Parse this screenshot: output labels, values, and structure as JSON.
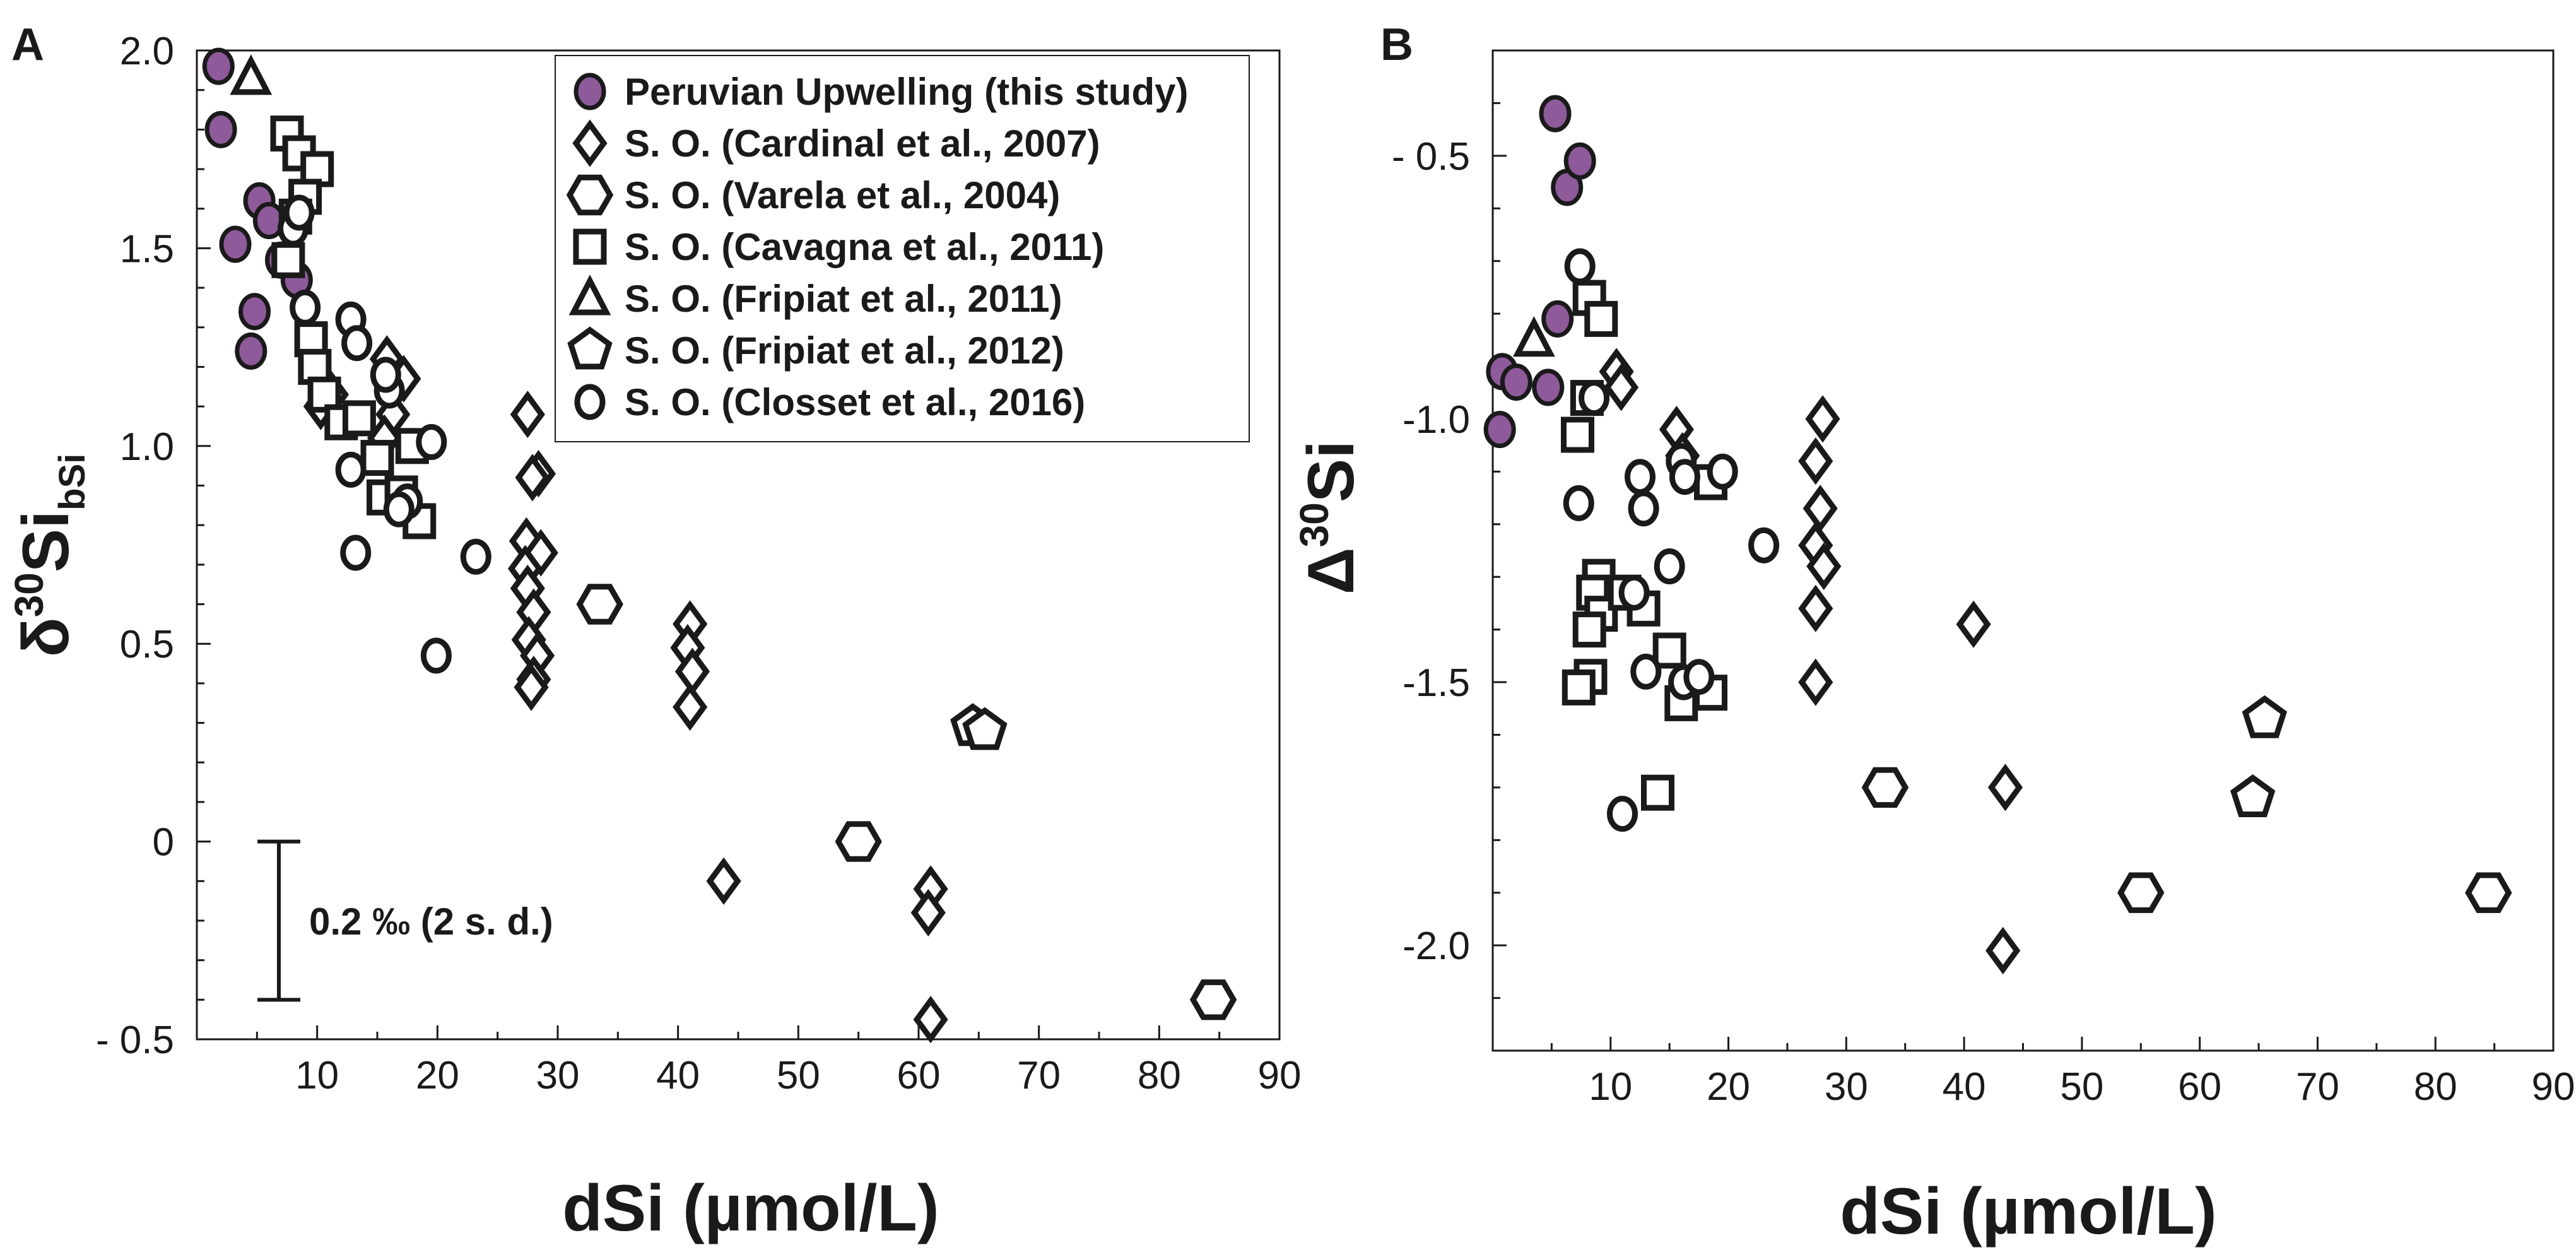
{
  "legend": {
    "entries": [
      {
        "key": "peru",
        "label": "Peruvian Upwelling (this study)"
      },
      {
        "key": "cardinal",
        "label": "S. O. (Cardinal et al., 2007)"
      },
      {
        "key": "varela",
        "label": "S. O. (Varela et al., 2004)"
      },
      {
        "key": "cavagna",
        "label": "S. O. (Cavagna et al., 2011)"
      },
      {
        "key": "fripiat2011",
        "label": "S. O. (Fripiat et al., 2011)"
      },
      {
        "key": "fripiat2012",
        "label": "S. O. (Fripiat et al., 2012)"
      },
      {
        "key": "closset",
        "label": "S. O. (Closset et al., 2016)"
      }
    ]
  },
  "colors": {
    "peru_fill": "#8e5a9a",
    "open_fill": "#ffffff",
    "stroke": "#1a1a1a"
  },
  "chart_data": [
    {
      "panel": "A",
      "type": "scatter",
      "xlabel": "dSi (µmol/L)",
      "ylabel_main": "δ",
      "ylabel_sup": "30",
      "ylabel_base": "Si",
      "ylabel_sub": "bSi",
      "xlim": [
        0,
        90
      ],
      "ylim": [
        -0.5,
        2.0
      ],
      "xticks": [
        10,
        20,
        30,
        40,
        50,
        60,
        70,
        80,
        90
      ],
      "yticks": [
        2.0,
        1.5,
        1.0,
        0.5,
        0,
        -0.5
      ],
      "ytick_labels": [
        "2.0",
        "1.5",
        "1.0",
        "0.5",
        "0",
        "- 0.5"
      ],
      "error_bar": {
        "label": "0.2 ‰ (2 s. d.)",
        "y_top": 0.0,
        "y_bottom": -0.4,
        "x": 1.5
      },
      "series": [
        {
          "name": "Peruvian Upwelling (this study)",
          "marker": "circle-filled",
          "points": [
            [
              1.8,
              1.96
            ],
            [
              2.0,
              1.8
            ],
            [
              3.2,
              1.51
            ],
            [
              5.2,
              1.62
            ],
            [
              6.0,
              1.57
            ],
            [
              4.8,
              1.34
            ],
            [
              4.5,
              1.24
            ],
            [
              7.0,
              1.47
            ],
            [
              8.3,
              1.42
            ]
          ]
        },
        {
          "name": "S. O. (Cardinal et al., 2007)",
          "marker": "diamond",
          "points": [
            [
              10.3,
              1.1
            ],
            [
              11.2,
              1.13
            ],
            [
              15.8,
              1.22
            ],
            [
              16.3,
              1.08
            ],
            [
              17.2,
              1.17
            ],
            [
              15.6,
              1.02
            ],
            [
              27.5,
              1.08
            ],
            [
              28.4,
              0.93
            ],
            [
              27.9,
              0.92
            ],
            [
              27.4,
              0.76
            ],
            [
              28.6,
              0.73
            ],
            [
              27.3,
              0.69
            ],
            [
              27.5,
              0.64
            ],
            [
              28.0,
              0.58
            ],
            [
              27.6,
              0.51
            ],
            [
              28.3,
              0.47
            ],
            [
              28.0,
              0.41
            ],
            [
              27.8,
              0.39
            ],
            [
              41.0,
              0.55
            ],
            [
              40.8,
              0.49
            ],
            [
              41.2,
              0.43
            ],
            [
              41.0,
              0.34
            ],
            [
              43.8,
              -0.1
            ],
            [
              61.0,
              -0.12
            ],
            [
              60.8,
              -0.18
            ],
            [
              61.0,
              -0.45
            ]
          ]
        },
        {
          "name": "S. O. (Varela et al., 2004)",
          "marker": "hexagon",
          "points": [
            [
              33.5,
              0.6
            ],
            [
              55.0,
              0.0
            ],
            [
              84.5,
              -0.4
            ]
          ]
        },
        {
          "name": "S. O. (Cavagna et al., 2011)",
          "marker": "square",
          "points": [
            [
              7.5,
              1.79
            ],
            [
              8.5,
              1.74
            ],
            [
              10.0,
              1.7
            ],
            [
              9.0,
              1.63
            ],
            [
              8.2,
              1.58
            ],
            [
              7.6,
              1.47
            ],
            [
              9.5,
              1.27
            ],
            [
              9.8,
              1.2
            ],
            [
              10.6,
              1.13
            ],
            [
              12.0,
              1.06
            ],
            [
              13.5,
              1.07
            ],
            [
              15.0,
              0.97
            ],
            [
              15.5,
              0.87
            ],
            [
              17.0,
              0.88
            ],
            [
              18.5,
              0.81
            ],
            [
              17.9,
              1.0
            ]
          ]
        },
        {
          "name": "S. O. (Fripiat et al., 2011)",
          "marker": "triangle",
          "points": [
            [
              4.5,
              1.93
            ]
          ]
        },
        {
          "name": "S. O. (Fripiat et al., 2012)",
          "marker": "pentagon",
          "points": [
            [
              64.5,
              0.29
            ],
            [
              65.5,
              0.28
            ]
          ]
        },
        {
          "name": "S. O. (Closset et al., 2016)",
          "marker": "circle",
          "points": [
            [
              8.0,
              1.55
            ],
            [
              8.5,
              1.59
            ],
            [
              9.0,
              1.35
            ],
            [
              12.8,
              1.32
            ],
            [
              13.3,
              1.26
            ],
            [
              16.0,
              1.14
            ],
            [
              15.7,
              1.18
            ],
            [
              12.8,
              0.94
            ],
            [
              13.2,
              0.73
            ],
            [
              17.5,
              0.86
            ],
            [
              19.5,
              1.01
            ],
            [
              23.2,
              0.72
            ],
            [
              19.9,
              0.47
            ],
            [
              16.8,
              0.84
            ]
          ]
        }
      ]
    },
    {
      "panel": "B",
      "type": "scatter",
      "xlabel": "dSi (µmol/L)",
      "ylabel_main": "Δ",
      "ylabel_sup": "30",
      "ylabel_base": "Si",
      "xlim": [
        0,
        90
      ],
      "ylim": [
        -2.2,
        -0.3
      ],
      "xticks": [
        10,
        20,
        30,
        40,
        50,
        60,
        70,
        80,
        90
      ],
      "yticks": [
        -0.5,
        -1.0,
        -1.5,
        -2.0
      ],
      "ytick_labels": [
        "- 0.5",
        "-1.0",
        "-1.5",
        "-2.0"
      ],
      "series": [
        {
          "name": "Peruvian Upwelling (this study)",
          "marker": "circle-filled",
          "points": [
            [
              5.3,
              -0.42
            ],
            [
              6.3,
              -0.56
            ],
            [
              7.4,
              -0.51
            ],
            [
              5.5,
              -0.81
            ],
            [
              0.8,
              -0.91
            ],
            [
              2.0,
              -0.93
            ],
            [
              4.7,
              -0.94
            ],
            [
              0.6,
              -1.02
            ]
          ]
        },
        {
          "name": "S. O. (Cardinal et al., 2007)",
          "marker": "diamond",
          "points": [
            [
              10.5,
              -0.91
            ],
            [
              10.9,
              -0.94
            ],
            [
              15.6,
              -1.02
            ],
            [
              16.1,
              -1.07
            ],
            [
              28.0,
              -1.0
            ],
            [
              27.4,
              -1.08
            ],
            [
              27.8,
              -1.17
            ],
            [
              27.4,
              -1.24
            ],
            [
              28.1,
              -1.28
            ],
            [
              27.4,
              -1.36
            ],
            [
              27.4,
              -1.5
            ],
            [
              40.8,
              -1.39
            ],
            [
              43.5,
              -1.7
            ],
            [
              43.3,
              -2.01
            ]
          ]
        },
        {
          "name": "S. O. (Varela et al., 2004)",
          "marker": "hexagon",
          "points": [
            [
              33.3,
              -1.7
            ],
            [
              55.0,
              -1.9
            ],
            [
              84.5,
              -1.9
            ]
          ]
        },
        {
          "name": "S. O. (Cavagna et al., 2011)",
          "marker": "square",
          "points": [
            [
              8.2,
              -0.77
            ],
            [
              9.2,
              -0.81
            ],
            [
              8.0,
              -0.96
            ],
            [
              7.2,
              -1.03
            ],
            [
              9.0,
              -1.3
            ],
            [
              8.5,
              -1.33
            ],
            [
              9.2,
              -1.37
            ],
            [
              8.2,
              -1.4
            ],
            [
              8.3,
              -1.49
            ],
            [
              7.3,
              -1.51
            ],
            [
              11.2,
              -1.33
            ],
            [
              12.8,
              -1.36
            ],
            [
              15.0,
              -1.44
            ],
            [
              16.0,
              -1.54
            ],
            [
              18.5,
              -1.52
            ],
            [
              18.5,
              -1.12
            ],
            [
              14.0,
              -1.71
            ]
          ]
        },
        {
          "name": "S. O. (Fripiat et al., 2011)",
          "marker": "triangle",
          "points": [
            [
              3.5,
              -0.85
            ]
          ]
        },
        {
          "name": "S. O. (Fripiat et al., 2012)",
          "marker": "pentagon",
          "points": [
            [
              64.5,
              -1.72
            ],
            [
              65.5,
              -1.57
            ]
          ]
        },
        {
          "name": "S. O. (Closset et al., 2016)",
          "marker": "circle",
          "points": [
            [
              7.4,
              -0.71
            ],
            [
              8.6,
              -0.96
            ],
            [
              7.3,
              -1.16
            ],
            [
              12.5,
              -1.11
            ],
            [
              12.8,
              -1.17
            ],
            [
              16.0,
              -1.08
            ],
            [
              16.3,
              -1.11
            ],
            [
              19.5,
              -1.1
            ],
            [
              23.0,
              -1.24
            ],
            [
              15.0,
              -1.28
            ],
            [
              12.0,
              -1.33
            ],
            [
              13.0,
              -1.48
            ],
            [
              16.2,
              -1.5
            ],
            [
              17.5,
              -1.49
            ],
            [
              11.0,
              -1.75
            ]
          ]
        }
      ]
    }
  ]
}
